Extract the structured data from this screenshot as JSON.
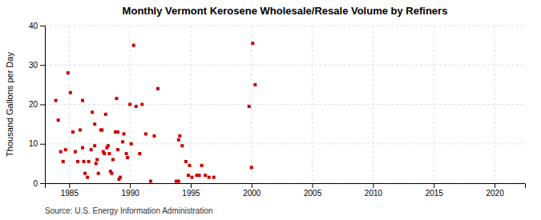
{
  "chart_data": {
    "type": "scatter",
    "title": "Monthly Vermont Kerosene Wholesale/Resale Volume by Refiners",
    "ylabel": "Thousand Gallons per Day",
    "annotations": [
      "Source: U.S. Energy Information Administration"
    ],
    "color": "#cc0000",
    "marker": "square",
    "grid": true,
    "xlim": [
      1983.0,
      2022.5
    ],
    "ylim": [
      0,
      40
    ],
    "xticks": [
      1985,
      1990,
      1995,
      2000,
      2005,
      2010,
      2015,
      2020
    ],
    "yticks": [
      0,
      10,
      20,
      30,
      40
    ],
    "x": [
      1983.9,
      1984.1,
      1984.3,
      1984.5,
      1984.7,
      1984.9,
      1985.1,
      1985.3,
      1985.5,
      1985.7,
      1985.9,
      1986.1,
      1986.1,
      1986.2,
      1986.3,
      1986.5,
      1986.6,
      1986.8,
      1986.9,
      1987.1,
      1987.1,
      1987.2,
      1987.3,
      1987.4,
      1987.6,
      1987.7,
      1987.8,
      1987.9,
      1988.0,
      1988.1,
      1988.2,
      1988.3,
      1988.4,
      1988.5,
      1988.6,
      1988.8,
      1988.9,
      1989.0,
      1989.0,
      1989.1,
      1989.2,
      1989.4,
      1989.5,
      1989.7,
      1989.8,
      1990.0,
      1990.1,
      1990.3,
      1990.5,
      1990.8,
      1991.0,
      1991.3,
      1991.7,
      1992.0,
      1992.3,
      1993.8,
      1994.0,
      1994.0,
      1994.1,
      1994.3,
      1994.6,
      1994.8,
      1994.9,
      1995.1,
      1995.5,
      1995.7,
      1995.9,
      1996.2,
      1996.5,
      1996.9,
      1999.8,
      2000.0,
      2000.1,
      2000.3
    ],
    "y": [
      21.0,
      16.0,
      8.0,
      5.5,
      8.5,
      28.0,
      23.0,
      13.0,
      8.0,
      5.5,
      13.5,
      21.0,
      9.0,
      5.5,
      2.5,
      1.5,
      5.5,
      8.5,
      18.0,
      15.0,
      9.5,
      5.0,
      6.0,
      2.5,
      13.5,
      13.5,
      8.0,
      7.5,
      17.5,
      9.0,
      9.5,
      7.5,
      3.0,
      2.5,
      6.0,
      13.0,
      21.5,
      13.0,
      8.5,
      1.0,
      1.5,
      10.5,
      12.5,
      7.5,
      6.5,
      20.0,
      10.0,
      35.0,
      19.5,
      7.5,
      20.0,
      12.5,
      0.5,
      12.0,
      24.0,
      0.5,
      0.5,
      11.0,
      12.0,
      9.5,
      5.5,
      2.0,
      4.5,
      1.5,
      2.0,
      2.0,
      4.5,
      2.0,
      1.5,
      1.5,
      19.5,
      4.0,
      35.5,
      25.0
    ]
  }
}
